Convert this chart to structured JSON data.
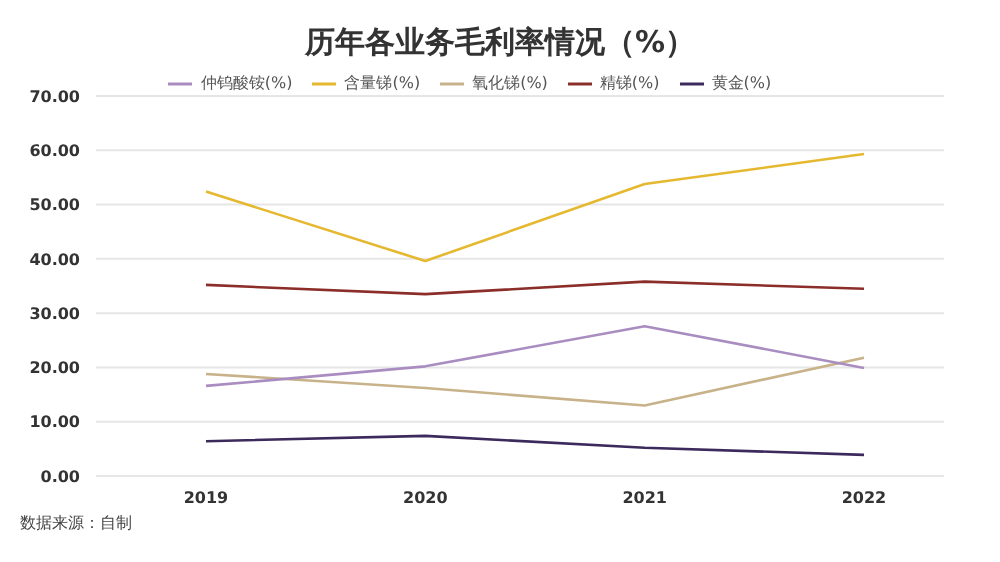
{
  "chart_data": {
    "type": "line",
    "title": "历年各业务毛利率情况（%）",
    "categories": [
      "2019",
      "2020",
      "2021",
      "2022"
    ],
    "series": [
      {
        "name": "黄金(%)",
        "color": "#3d2a5c",
        "values": [
          6.4,
          7.4,
          5.2,
          3.9
        ]
      },
      {
        "name": "氧化锑(%)",
        "color": "#c8b28a",
        "values": [
          18.8,
          16.2,
          13,
          21.8
        ]
      },
      {
        "name": "精锑(%)",
        "color": "#8b2e2a",
        "values": [
          35.2,
          33.5,
          35.8,
          34.5
        ]
      },
      {
        "name": "含量锑(%)",
        "color": "#e6b830",
        "values": [
          52.4,
          39.6,
          53.8,
          59.3
        ]
      },
      {
        "name": "仲钨酸铵(%)",
        "color": "#a98dc0",
        "values": [
          16.6,
          20.2,
          27.6,
          19.9
        ]
      }
    ],
    "ylim": [
      0,
      70
    ],
    "yticks": [
      {
        "value": 0,
        "label": "0.00"
      },
      {
        "value": 10,
        "label": "10.00"
      },
      {
        "value": 20,
        "label": "20.00"
      },
      {
        "value": 30,
        "label": "30.00"
      },
      {
        "value": 40,
        "label": "40.00"
      },
      {
        "value": 50,
        "label": "50.00"
      },
      {
        "value": 60,
        "label": "60.00"
      },
      {
        "value": 70,
        "label": "70.00"
      }
    ],
    "grid": "y",
    "legend": "top",
    "marker": "none",
    "line_style": "solid",
    "annotations": [
      "数据来源：自制"
    ]
  }
}
